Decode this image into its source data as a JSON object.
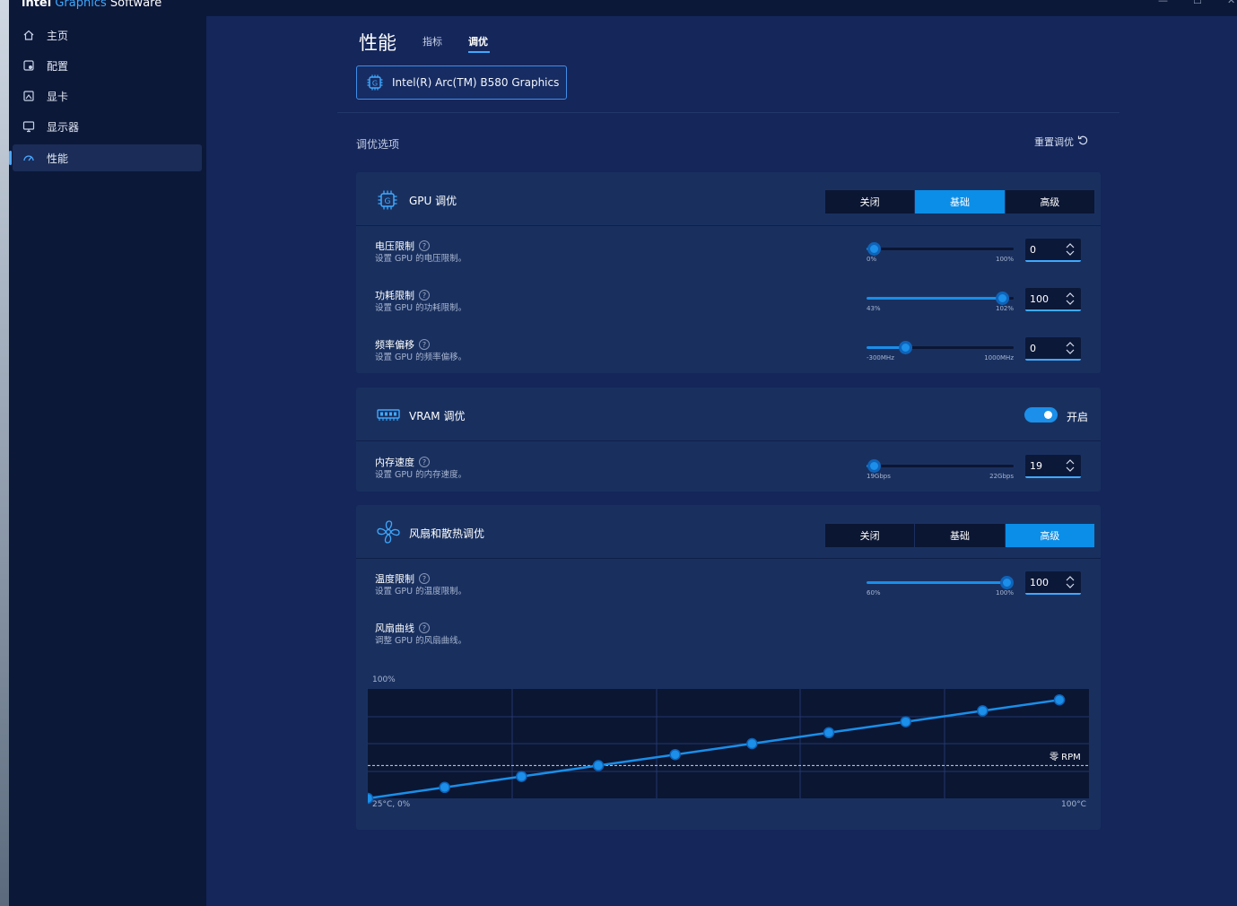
{
  "app": {
    "title_brand": "intel",
    "title_graphics": "Graphics",
    "title_rest": "Software",
    "win_min": "—",
    "win_max": "☐",
    "win_close": "✕"
  },
  "sidebar": {
    "items": [
      {
        "label": "主页",
        "icon": "home-icon",
        "active": false
      },
      {
        "label": "配置",
        "icon": "profile-icon",
        "active": false
      },
      {
        "label": "显卡",
        "icon": "gpu-card-icon",
        "active": false
      },
      {
        "label": "显示器",
        "icon": "monitor-icon",
        "active": false
      },
      {
        "label": "性能",
        "icon": "gauge-icon",
        "active": true
      }
    ]
  },
  "header": {
    "title": "性能",
    "tabs": [
      {
        "label": "指标",
        "active": false
      },
      {
        "label": "调优",
        "active": true
      }
    ],
    "device": "Intel(R) Arc(TM) B580 Graphics"
  },
  "tuning": {
    "section_label": "调优选项",
    "reset_label": "重置调优",
    "gpu": {
      "title": "GPU 调优",
      "modes": [
        "关闭",
        "基础",
        "高级"
      ],
      "selected_mode": "基础",
      "rows": [
        {
          "title": "电压限制",
          "sub": "设置 GPU 的电压限制。",
          "min": "0%",
          "max": "100%",
          "value": "0",
          "fraction": 0.05
        },
        {
          "title": "功耗限制",
          "sub": "设置 GPU 的功耗限制。",
          "min": "43%",
          "max": "102%",
          "value": "100",
          "fraction": 0.92
        },
        {
          "title": "频率偏移",
          "sub": "设置 GPU 的频率偏移。",
          "min": "-300MHz",
          "max": "1000MHz",
          "value": "0",
          "fraction": 0.26
        }
      ]
    },
    "vram": {
      "title": "VRAM 调优",
      "toggle_label": "开启",
      "enabled": true,
      "rows": [
        {
          "title": "内存速度",
          "sub": "设置 GPU 的内存速度。",
          "min": "19Gbps",
          "max": "22Gbps",
          "value": "19",
          "fraction": 0.05
        }
      ]
    },
    "fan": {
      "title": "风扇和散热调优",
      "modes": [
        "关闭",
        "基础",
        "高级"
      ],
      "selected_mode": "高级",
      "rows": [
        {
          "title": "温度限制",
          "sub": "设置 GPU 的温度限制。",
          "min": "60%",
          "max": "100%",
          "value": "100",
          "fraction": 0.95
        }
      ],
      "curve_title": "风扇曲线",
      "curve_sub": "调整 GPU 的风扇曲线。",
      "curve_top_label": "100%",
      "curve_start_label": "25°C, 0%",
      "curve_end_label": "100°C",
      "zero_rpm_label": "零 RPM"
    }
  },
  "chart_data": {
    "type": "line",
    "x": [
      0,
      1,
      2,
      3,
      4,
      5,
      6,
      7,
      8,
      9
    ],
    "series": [
      {
        "values": [
          0,
          10,
          20,
          30,
          40,
          50,
          60,
          70,
          80,
          90
        ]
      }
    ],
    "zero_rpm_level": 30,
    "ylim": [
      0,
      100
    ],
    "colors": {
      "line": "#1a8ee8",
      "point": "#1b8fe9",
      "bg": "#0b1633",
      "grid": "#23376b"
    }
  },
  "colors": {
    "accent": "#1b8fe9",
    "sidebar_bg": "#0c1838",
    "main_bg": "#14265a",
    "panel_bg": "#19305f"
  }
}
